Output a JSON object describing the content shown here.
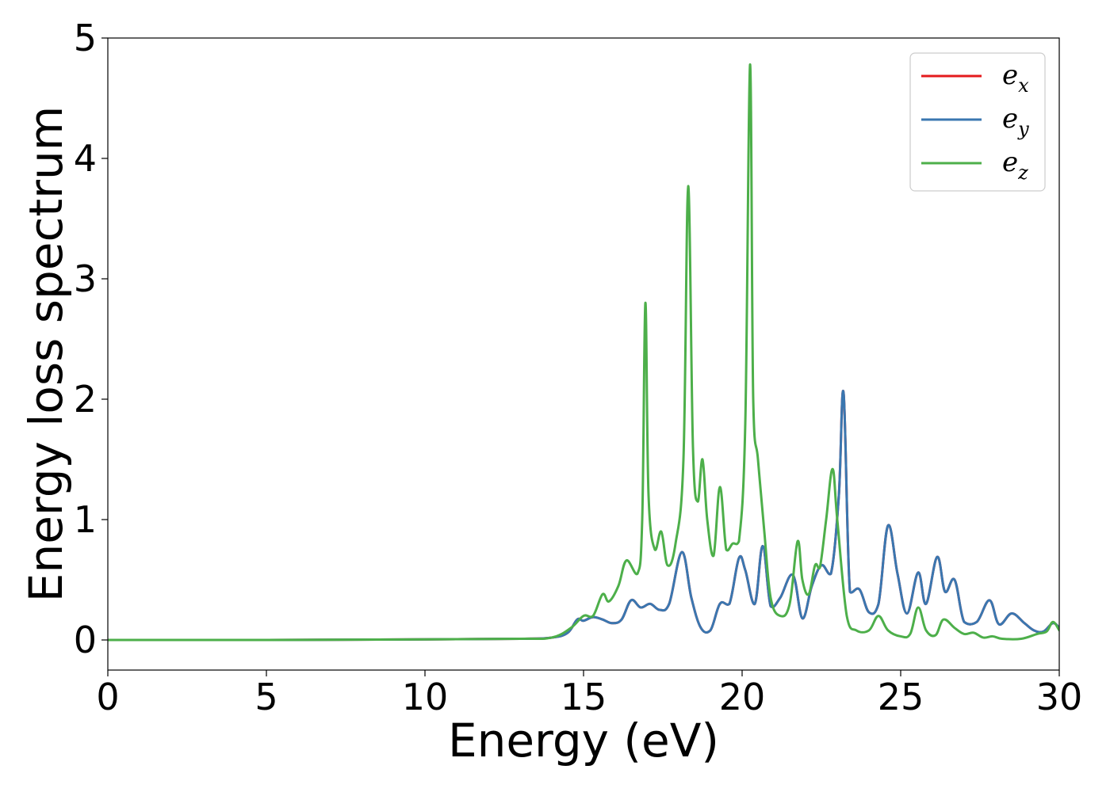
{
  "chart_data": {
    "type": "line",
    "title": "",
    "xlabel": "Energy (eV)",
    "ylabel": "Energy loss spectrum",
    "xlim": [
      0,
      30
    ],
    "ylim": [
      -0.25,
      5.0
    ],
    "xticks": [
      0,
      5,
      10,
      15,
      20,
      25,
      30
    ],
    "yticks": [
      0,
      1,
      2,
      3,
      4,
      5
    ],
    "grid": false,
    "legend_position": "top-right",
    "series": [
      {
        "name": "e_x",
        "label_main": "e",
        "label_sub": "x",
        "color": "#e41a1c",
        "x": [
          0,
          5,
          10,
          13,
          14,
          14.5,
          14.8,
          15.0,
          15.3,
          15.6,
          15.9,
          16.2,
          16.5,
          16.8,
          17.1,
          17.4,
          17.7,
          18.1,
          18.4,
          18.7,
          19.0,
          19.3,
          19.6,
          19.9,
          20.1,
          20.4,
          20.65,
          20.9,
          21.2,
          21.6,
          21.9,
          22.2,
          22.5,
          22.8,
          23.05,
          23.2,
          23.4,
          23.7,
          24.0,
          24.3,
          24.6,
          24.9,
          25.2,
          25.55,
          25.8,
          26.15,
          26.4,
          26.7,
          27.0,
          27.4,
          27.8,
          28.1,
          28.5,
          28.9,
          29.2,
          29.5,
          29.8,
          30
        ],
        "values": [
          0,
          0,
          0.005,
          0.01,
          0.02,
          0.06,
          0.17,
          0.16,
          0.19,
          0.17,
          0.14,
          0.17,
          0.33,
          0.27,
          0.3,
          0.25,
          0.3,
          0.73,
          0.35,
          0.1,
          0.08,
          0.3,
          0.3,
          0.68,
          0.58,
          0.3,
          0.78,
          0.28,
          0.35,
          0.54,
          0.18,
          0.45,
          0.62,
          0.55,
          1.2,
          2.05,
          0.4,
          0.42,
          0.23,
          0.3,
          0.95,
          0.55,
          0.22,
          0.56,
          0.3,
          0.69,
          0.4,
          0.5,
          0.15,
          0.15,
          0.33,
          0.13,
          0.22,
          0.14,
          0.08,
          0.07,
          0.14,
          0.1
        ]
      },
      {
        "name": "e_y",
        "label_main": "e",
        "label_sub": "y",
        "color": "#3a77b0",
        "x": [
          0,
          5,
          10,
          13,
          14,
          14.5,
          14.8,
          15.0,
          15.3,
          15.6,
          15.9,
          16.2,
          16.5,
          16.8,
          17.1,
          17.4,
          17.7,
          18.1,
          18.4,
          18.7,
          19.0,
          19.3,
          19.6,
          19.9,
          20.1,
          20.4,
          20.65,
          20.9,
          21.2,
          21.6,
          21.9,
          22.2,
          22.5,
          22.8,
          23.05,
          23.2,
          23.4,
          23.7,
          24.0,
          24.3,
          24.6,
          24.9,
          25.2,
          25.55,
          25.8,
          26.15,
          26.4,
          26.7,
          27.0,
          27.4,
          27.8,
          28.1,
          28.5,
          28.9,
          29.2,
          29.5,
          29.8,
          30
        ],
        "values": [
          0,
          0,
          0.005,
          0.01,
          0.02,
          0.06,
          0.17,
          0.16,
          0.19,
          0.17,
          0.14,
          0.17,
          0.33,
          0.27,
          0.3,
          0.25,
          0.3,
          0.73,
          0.35,
          0.1,
          0.08,
          0.3,
          0.3,
          0.68,
          0.58,
          0.3,
          0.78,
          0.28,
          0.35,
          0.54,
          0.18,
          0.45,
          0.62,
          0.55,
          1.2,
          2.05,
          0.4,
          0.42,
          0.23,
          0.3,
          0.95,
          0.55,
          0.22,
          0.56,
          0.3,
          0.69,
          0.4,
          0.5,
          0.15,
          0.15,
          0.33,
          0.13,
          0.22,
          0.14,
          0.08,
          0.07,
          0.14,
          0.1
        ]
      },
      {
        "name": "e_z",
        "label_main": "e",
        "label_sub": "z",
        "color": "#4daf4a",
        "x": [
          0,
          5,
          10,
          13,
          14,
          14.6,
          15.0,
          15.3,
          15.6,
          15.8,
          16.1,
          16.35,
          16.7,
          16.85,
          16.95,
          17.05,
          17.25,
          17.45,
          17.65,
          17.9,
          18.15,
          18.3,
          18.45,
          18.6,
          18.75,
          18.9,
          19.1,
          19.3,
          19.5,
          19.7,
          19.9,
          20.1,
          20.25,
          20.35,
          20.5,
          20.7,
          20.9,
          21.2,
          21.5,
          21.75,
          21.9,
          22.1,
          22.3,
          22.45,
          22.65,
          22.85,
          23.0,
          23.3,
          23.6,
          24.0,
          24.3,
          24.6,
          25.0,
          25.3,
          25.55,
          25.8,
          26.1,
          26.35,
          26.7,
          27.0,
          27.3,
          27.6,
          27.9,
          28.2,
          28.8,
          29.3,
          29.6,
          29.8,
          30
        ],
        "values": [
          0,
          0,
          0.005,
          0.01,
          0.02,
          0.1,
          0.2,
          0.2,
          0.38,
          0.32,
          0.45,
          0.66,
          0.55,
          1.0,
          2.8,
          1.2,
          0.75,
          0.9,
          0.62,
          0.8,
          1.5,
          3.77,
          1.6,
          1.15,
          1.5,
          1.0,
          0.7,
          1.27,
          0.75,
          0.8,
          0.82,
          1.8,
          4.78,
          2.0,
          1.5,
          0.9,
          0.35,
          0.2,
          0.3,
          0.82,
          0.5,
          0.38,
          0.62,
          0.6,
          1.0,
          1.42,
          1.0,
          0.2,
          0.08,
          0.08,
          0.2,
          0.08,
          0.03,
          0.05,
          0.27,
          0.08,
          0.04,
          0.17,
          0.1,
          0.05,
          0.06,
          0.02,
          0.03,
          0.01,
          0.01,
          0.05,
          0.07,
          0.15,
          0.08
        ]
      }
    ]
  }
}
